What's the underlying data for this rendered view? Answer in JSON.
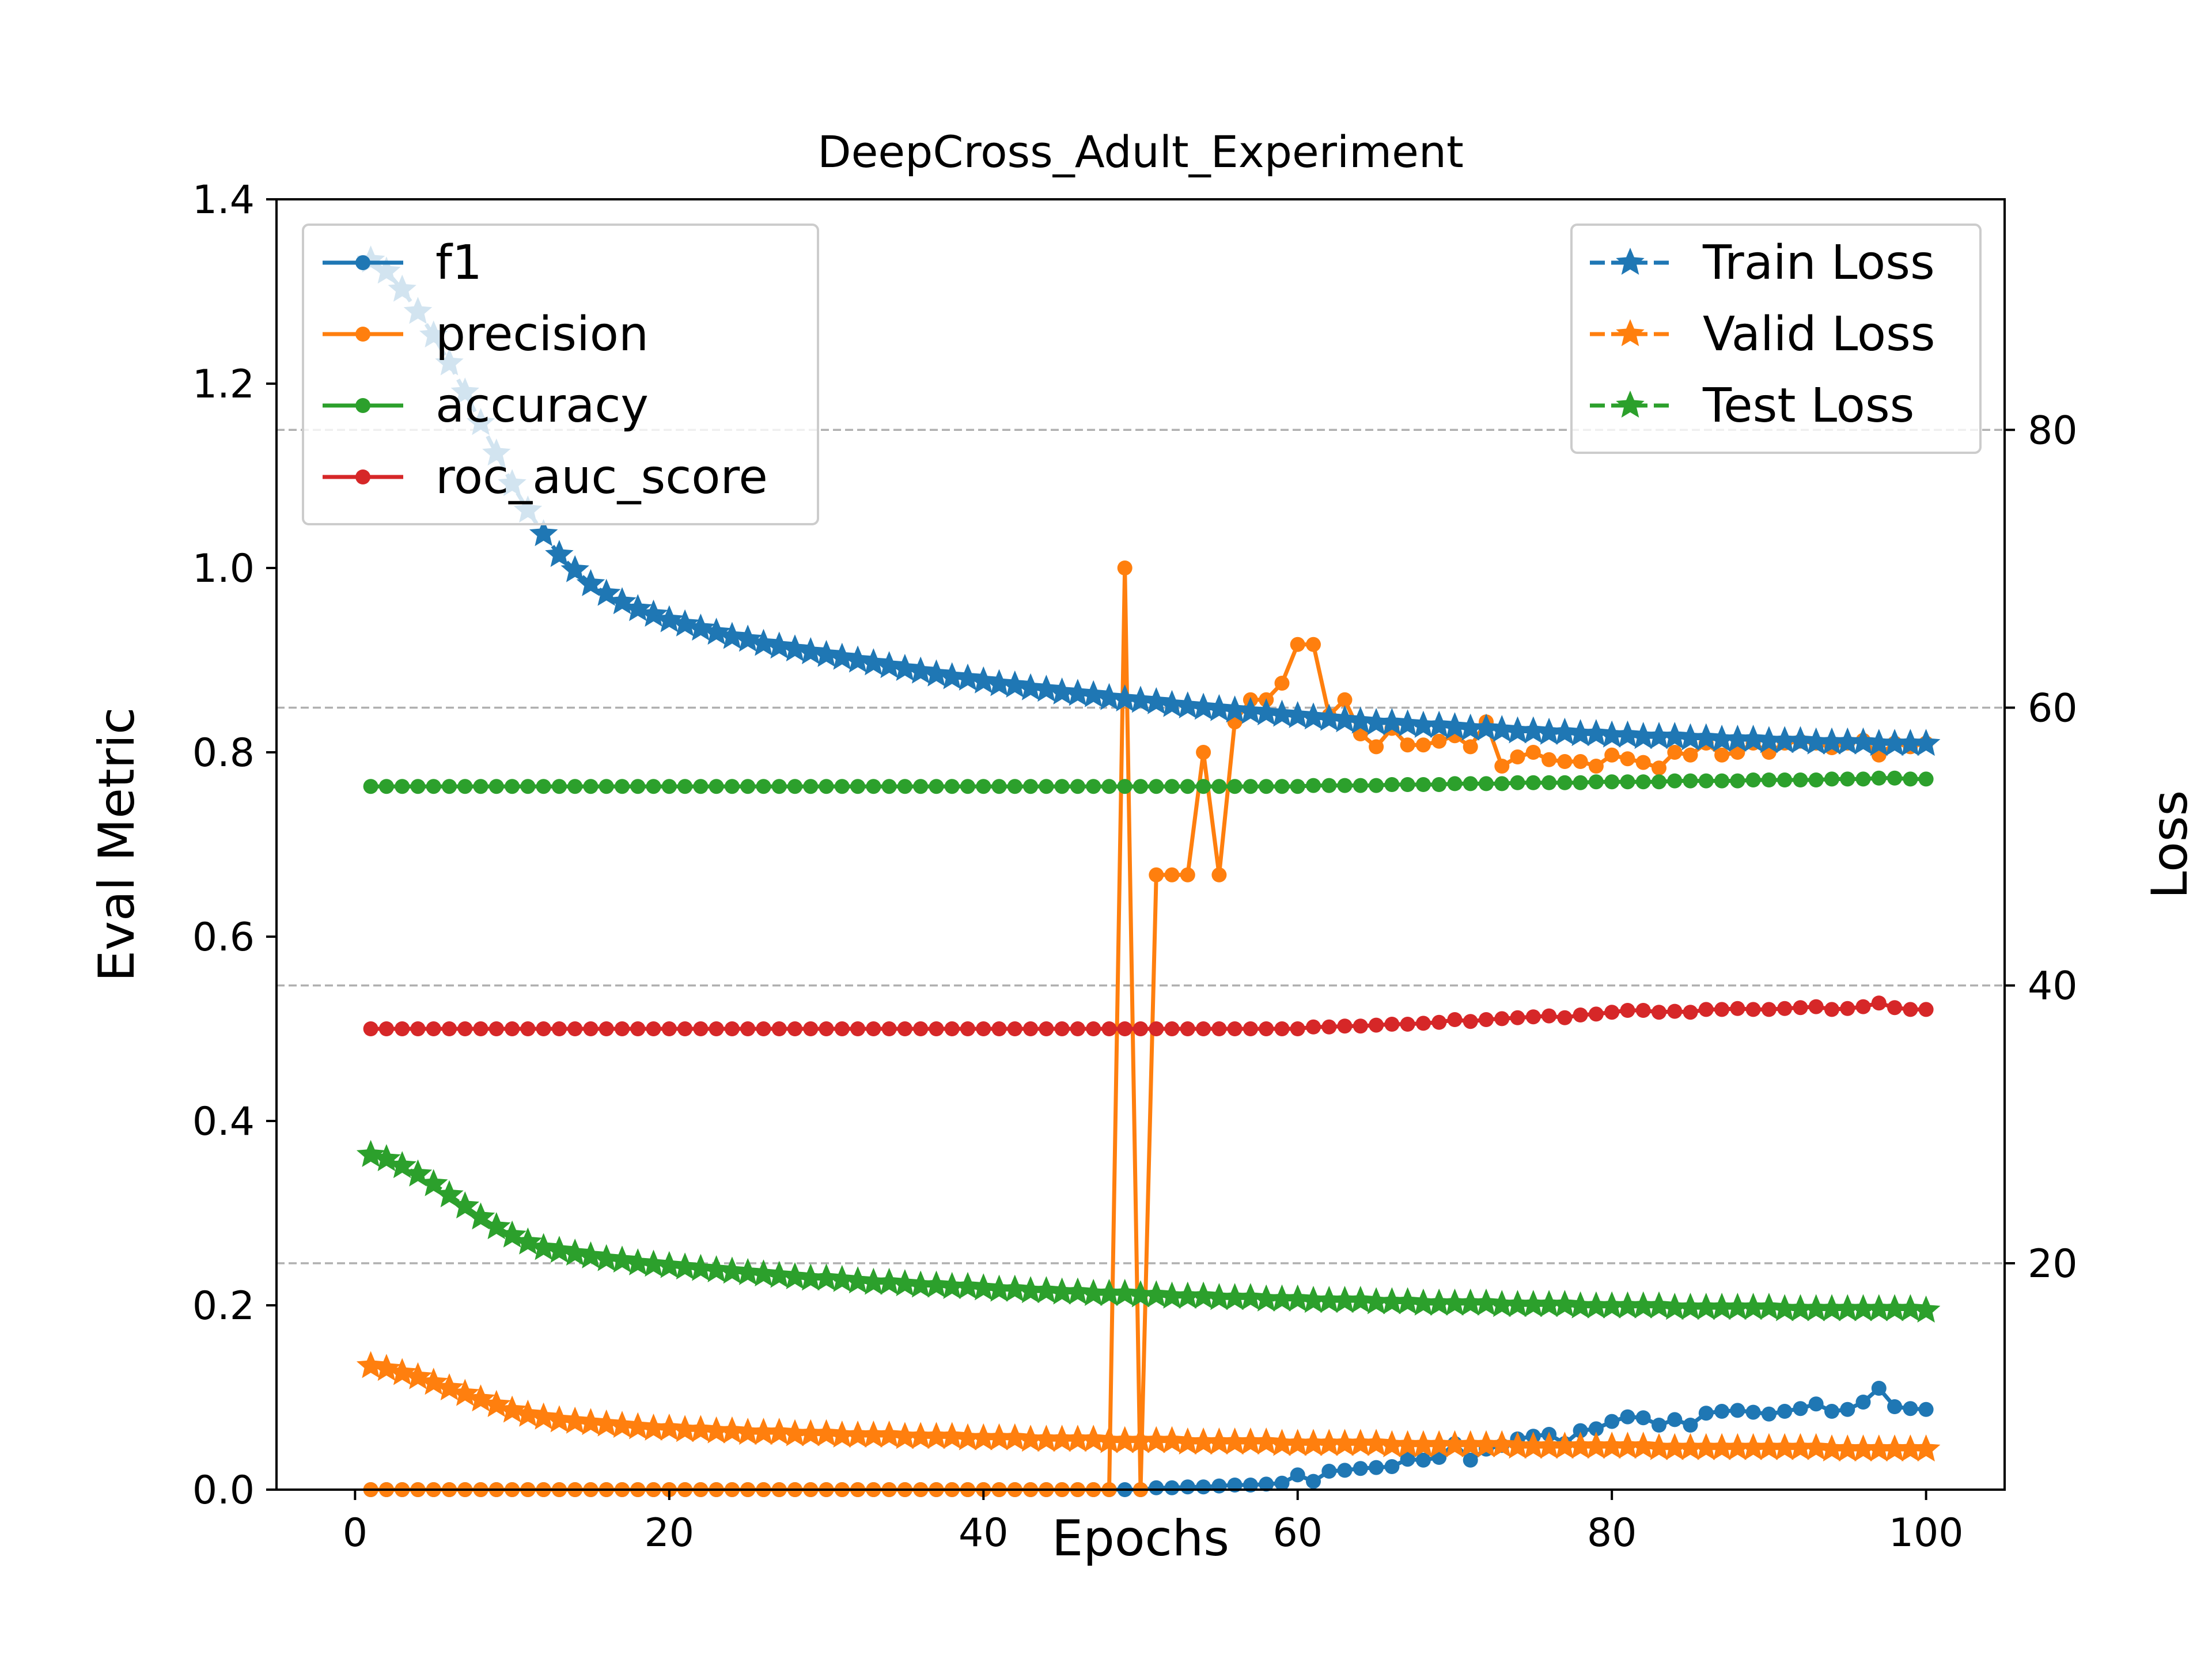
{
  "chart_data": {
    "type": "line",
    "title": "DeepCross_Adult_Experiment",
    "xlabel": "Epochs",
    "ylabel_left": "Eval Metric",
    "ylabel_right": "Loss",
    "xlim": [
      -5,
      105
    ],
    "ylim_left": [
      0.0,
      1.4
    ],
    "ylim_right": [
      3.7,
      96.6
    ],
    "x_ticks": [
      "0",
      "20",
      "40",
      "60",
      "80",
      "100"
    ],
    "y_left_ticks": [
      "0.0",
      "0.2",
      "0.4",
      "0.6",
      "0.8",
      "1.0",
      "1.2",
      "1.4"
    ],
    "y_right_ticks": [
      "20",
      "40",
      "60",
      "80"
    ],
    "right_grid": true,
    "legend_left": {
      "position": "upper-left",
      "entries": [
        "f1",
        "precision",
        "accuracy",
        "roc_auc_score"
      ]
    },
    "legend_right": {
      "position": "upper-right",
      "entries": [
        "Train Loss",
        "Valid Loss",
        "Test Loss"
      ]
    },
    "colors": {
      "blue": "#1f77b4",
      "orange": "#ff7f0e",
      "green": "#2ca02c",
      "red": "#d62728",
      "grid": "#b0b0b0"
    },
    "epochs": {
      "start": 1,
      "end": 100
    },
    "series": [
      {
        "name": "f1",
        "axis": "left",
        "style": "solid-dot",
        "color": "#1f77b4",
        "values": [
          0,
          0,
          0,
          0,
          0,
          0,
          0,
          0,
          0,
          0,
          0,
          0,
          0,
          0,
          0,
          0,
          0,
          0,
          0,
          0,
          0,
          0,
          0,
          0,
          0,
          0,
          0,
          0,
          0,
          0,
          0,
          0,
          0,
          0,
          0,
          0,
          0,
          0,
          0,
          0,
          0,
          0,
          0,
          0,
          0,
          0,
          0,
          0,
          0,
          0,
          0.002,
          0.002,
          0.003,
          0.003,
          0.004,
          0.005,
          0.005,
          0.006,
          0.007,
          0.016,
          0.009,
          0.02,
          0.021,
          0.023,
          0.024,
          0.025,
          0.033,
          0.032,
          0.035,
          0.05,
          0.032,
          0.044,
          0.048,
          0.055,
          0.058,
          0.06,
          0.05,
          0.064,
          0.066,
          0.074,
          0.079,
          0.078,
          0.07,
          0.076,
          0.07,
          0.083,
          0.085,
          0.086,
          0.084,
          0.082,
          0.085,
          0.088,
          0.093,
          0.085,
          0.087,
          0.095,
          0.11,
          0.09,
          0.088,
          0.087
        ]
      },
      {
        "name": "precision",
        "axis": "left",
        "style": "solid-dot",
        "color": "#ff7f0e",
        "values": [
          0,
          0,
          0,
          0,
          0,
          0,
          0,
          0,
          0,
          0,
          0,
          0,
          0,
          0,
          0,
          0,
          0,
          0,
          0,
          0,
          0,
          0,
          0,
          0,
          0,
          0,
          0,
          0,
          0,
          0,
          0,
          0,
          0,
          0,
          0,
          0,
          0,
          0,
          0,
          0,
          0,
          0,
          0,
          0,
          0,
          0,
          0,
          0,
          1.0,
          0,
          0.667,
          0.667,
          0.667,
          0.8,
          0.667,
          0.833,
          0.857,
          0.857,
          0.875,
          0.917,
          0.917,
          0.84,
          0.857,
          0.82,
          0.806,
          0.826,
          0.808,
          0.808,
          0.812,
          0.818,
          0.806,
          0.833,
          0.785,
          0.795,
          0.8,
          0.792,
          0.79,
          0.79,
          0.785,
          0.797,
          0.793,
          0.789,
          0.783,
          0.8,
          0.797,
          0.81,
          0.797,
          0.8,
          0.81,
          0.8,
          0.81,
          0.812,
          0.81,
          0.805,
          0.81,
          0.813,
          0.797,
          0.81,
          0.806,
          0.81
        ]
      },
      {
        "name": "accuracy",
        "axis": "left",
        "style": "solid-dot",
        "color": "#2ca02c",
        "values": [
          0.763,
          0.763,
          0.763,
          0.763,
          0.763,
          0.763,
          0.763,
          0.763,
          0.763,
          0.763,
          0.763,
          0.763,
          0.763,
          0.763,
          0.763,
          0.763,
          0.763,
          0.763,
          0.763,
          0.763,
          0.763,
          0.763,
          0.763,
          0.763,
          0.763,
          0.763,
          0.763,
          0.763,
          0.763,
          0.763,
          0.763,
          0.763,
          0.763,
          0.763,
          0.763,
          0.763,
          0.763,
          0.763,
          0.763,
          0.763,
          0.763,
          0.763,
          0.763,
          0.763,
          0.763,
          0.763,
          0.763,
          0.763,
          0.763,
          0.763,
          0.763,
          0.763,
          0.763,
          0.763,
          0.763,
          0.763,
          0.763,
          0.763,
          0.763,
          0.763,
          0.764,
          0.764,
          0.764,
          0.764,
          0.764,
          0.765,
          0.765,
          0.765,
          0.765,
          0.766,
          0.766,
          0.766,
          0.766,
          0.767,
          0.767,
          0.767,
          0.767,
          0.767,
          0.768,
          0.768,
          0.768,
          0.768,
          0.768,
          0.769,
          0.769,
          0.769,
          0.769,
          0.769,
          0.77,
          0.77,
          0.77,
          0.77,
          0.77,
          0.771,
          0.771,
          0.771,
          0.772,
          0.772,
          0.771,
          0.771
        ]
      },
      {
        "name": "roc_auc_score",
        "axis": "left",
        "style": "solid-dot",
        "color": "#d62728",
        "values": [
          0.5,
          0.5,
          0.5,
          0.5,
          0.5,
          0.5,
          0.5,
          0.5,
          0.5,
          0.5,
          0.5,
          0.5,
          0.5,
          0.5,
          0.5,
          0.5,
          0.5,
          0.5,
          0.5,
          0.5,
          0.5,
          0.5,
          0.5,
          0.5,
          0.5,
          0.5,
          0.5,
          0.5,
          0.5,
          0.5,
          0.5,
          0.5,
          0.5,
          0.5,
          0.5,
          0.5,
          0.5,
          0.5,
          0.5,
          0.5,
          0.5,
          0.5,
          0.5,
          0.5,
          0.5,
          0.5,
          0.5,
          0.5,
          0.5,
          0.5,
          0.5,
          0.5,
          0.5,
          0.5,
          0.5,
          0.5,
          0.5,
          0.5,
          0.5,
          0.5,
          0.502,
          0.502,
          0.503,
          0.503,
          0.504,
          0.505,
          0.505,
          0.506,
          0.507,
          0.51,
          0.508,
          0.51,
          0.511,
          0.512,
          0.513,
          0.514,
          0.512,
          0.515,
          0.516,
          0.518,
          0.52,
          0.52,
          0.518,
          0.519,
          0.518,
          0.521,
          0.521,
          0.522,
          0.521,
          0.521,
          0.522,
          0.523,
          0.524,
          0.521,
          0.522,
          0.524,
          0.528,
          0.523,
          0.521,
          0.521
        ]
      },
      {
        "name": "Train Loss",
        "axis": "right",
        "style": "dashed-star",
        "color": "#1f77b4",
        "values": [
          92.2,
          91.4,
          90.1,
          88.5,
          86.8,
          84.8,
          82.7,
          80.5,
          78.3,
          76.1,
          74.2,
          72.5,
          71.0,
          69.9,
          68.9,
          68.2,
          67.6,
          67.1,
          66.7,
          66.3,
          66.0,
          65.7,
          65.4,
          65.1,
          64.9,
          64.6,
          64.4,
          64.2,
          64.0,
          63.8,
          63.6,
          63.4,
          63.2,
          63.0,
          62.8,
          62.6,
          62.4,
          62.2,
          62.1,
          61.9,
          61.7,
          61.6,
          61.4,
          61.3,
          61.1,
          61.0,
          60.9,
          60.7,
          60.6,
          60.5,
          60.4,
          60.2,
          60.1,
          60.0,
          59.9,
          59.8,
          59.7,
          59.6,
          59.5,
          59.4,
          59.3,
          59.2,
          59.1,
          59.0,
          58.9,
          58.9,
          58.8,
          58.7,
          58.7,
          58.6,
          58.5,
          58.5,
          58.4,
          58.3,
          58.3,
          58.2,
          58.2,
          58.1,
          58.1,
          58.0,
          58.0,
          57.9,
          57.9,
          57.9,
          57.8,
          57.8,
          57.7,
          57.7,
          57.7,
          57.6,
          57.6,
          57.6,
          57.5,
          57.5,
          57.5,
          57.5,
          57.4,
          57.4,
          57.4,
          57.4
        ]
      },
      {
        "name": "Valid Loss",
        "axis": "right",
        "style": "dashed-star",
        "color": "#ff7f0e",
        "values": [
          12.6,
          12.4,
          12.1,
          11.8,
          11.4,
          11.0,
          10.6,
          10.2,
          9.8,
          9.4,
          9.1,
          8.9,
          8.7,
          8.6,
          8.5,
          8.4,
          8.3,
          8.2,
          8.1,
          8.1,
          8.0,
          8.0,
          7.9,
          7.9,
          7.8,
          7.8,
          7.8,
          7.7,
          7.7,
          7.7,
          7.6,
          7.6,
          7.6,
          7.6,
          7.5,
          7.5,
          7.5,
          7.5,
          7.4,
          7.4,
          7.4,
          7.4,
          7.3,
          7.3,
          7.3,
          7.3,
          7.3,
          7.2,
          7.2,
          7.2,
          7.2,
          7.2,
          7.1,
          7.1,
          7.1,
          7.1,
          7.1,
          7.1,
          7.0,
          7.0,
          7.0,
          7.0,
          7.0,
          7.0,
          7.0,
          6.9,
          6.9,
          6.9,
          6.9,
          6.9,
          6.9,
          6.9,
          6.9,
          6.8,
          6.8,
          6.8,
          6.8,
          6.8,
          6.8,
          6.8,
          6.8,
          6.8,
          6.7,
          6.7,
          6.7,
          6.7,
          6.7,
          6.7,
          6.7,
          6.7,
          6.7,
          6.7,
          6.7,
          6.6,
          6.6,
          6.6,
          6.6,
          6.6,
          6.6,
          6.6
        ]
      },
      {
        "name": "Test Loss",
        "axis": "right",
        "style": "dashed-star",
        "color": "#2ca02c",
        "values": [
          27.8,
          27.5,
          27.0,
          26.4,
          25.7,
          24.9,
          24.1,
          23.3,
          22.6,
          22.0,
          21.5,
          21.1,
          20.9,
          20.7,
          20.5,
          20.3,
          20.2,
          20.0,
          19.9,
          19.8,
          19.7,
          19.6,
          19.5,
          19.4,
          19.3,
          19.2,
          19.1,
          19.0,
          18.9,
          18.9,
          18.8,
          18.7,
          18.6,
          18.6,
          18.5,
          18.4,
          18.4,
          18.3,
          18.3,
          18.2,
          18.1,
          18.1,
          18.0,
          18.0,
          17.9,
          17.9,
          17.8,
          17.8,
          17.8,
          17.7,
          17.7,
          17.6,
          17.6,
          17.6,
          17.5,
          17.5,
          17.5,
          17.4,
          17.4,
          17.4,
          17.3,
          17.3,
          17.3,
          17.3,
          17.2,
          17.2,
          17.2,
          17.1,
          17.1,
          17.1,
          17.1,
          17.1,
          17.0,
          17.0,
          17.0,
          17.0,
          17.0,
          16.9,
          16.9,
          16.9,
          16.9,
          16.9,
          16.9,
          16.8,
          16.8,
          16.8,
          16.8,
          16.8,
          16.8,
          16.8,
          16.7,
          16.7,
          16.7,
          16.7,
          16.7,
          16.7,
          16.7,
          16.7,
          16.7,
          16.6
        ]
      }
    ]
  }
}
